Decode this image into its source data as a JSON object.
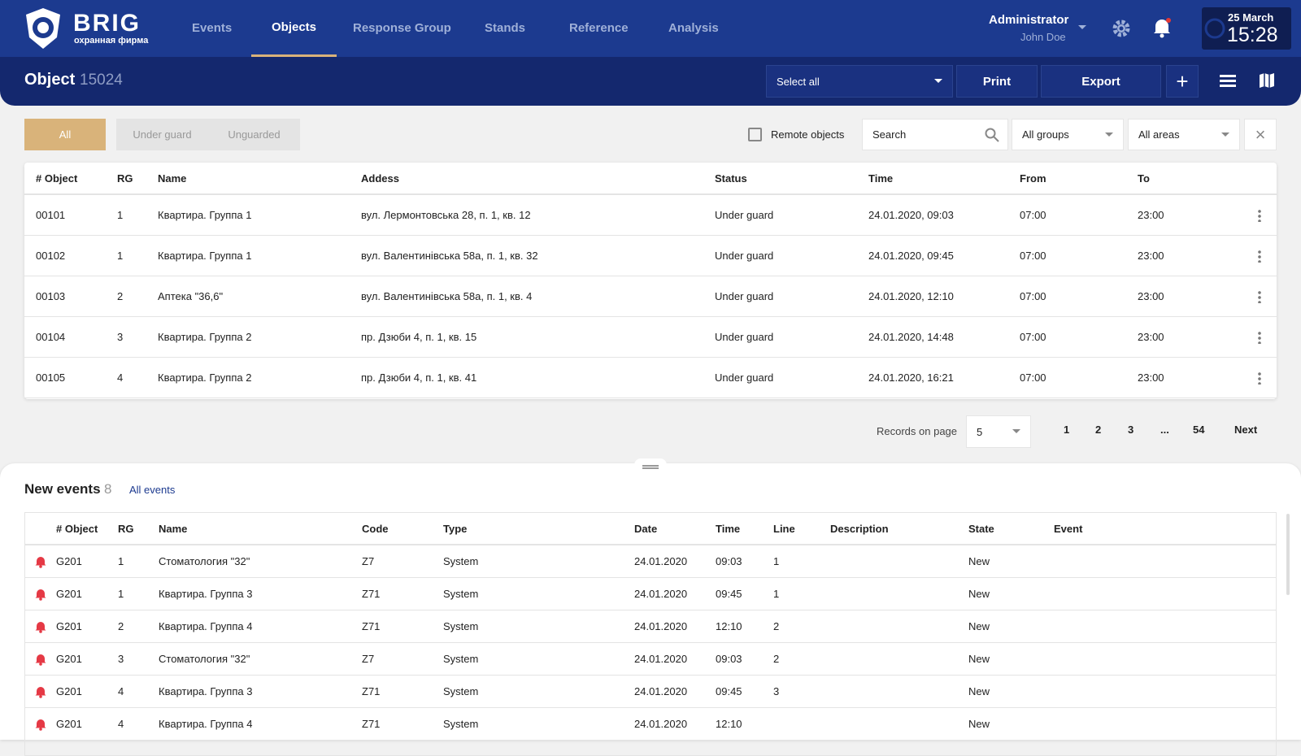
{
  "header": {
    "brand": "BRIG",
    "brand_sub": "охранная фирма",
    "nav": [
      "Events",
      "Objects",
      "Response Group",
      "Stands",
      "Reference",
      "Analysis"
    ],
    "nav_active": 1,
    "user_role": "Administrator",
    "user_name": "John Doe",
    "date": "25 March",
    "time": "15:28"
  },
  "toolbar": {
    "title": "Object",
    "object_id": "15024",
    "select": "Select all",
    "print": "Print",
    "export": "Export"
  },
  "filters": {
    "tabs": [
      "All",
      "Under guard",
      "Unguarded"
    ],
    "tab_active": 0,
    "remote": "Remote objects",
    "search": "Search",
    "groups": "All groups",
    "areas": "All areas"
  },
  "objects": {
    "columns": [
      "# Object",
      "RG",
      "Name",
      "Addess",
      "Status",
      "Time",
      "From",
      "To"
    ],
    "rows": [
      [
        "00101",
        "1",
        "Квартира. Группа 1",
        "вул. Лермонтовська 28, п. 1, кв. 12",
        "Under guard",
        "24.01.2020, 09:03",
        "07:00",
        "23:00"
      ],
      [
        "00102",
        "1",
        "Квартира. Группа 1",
        "вул. Валентинівська 58а, п. 1, кв. 32",
        "Under guard",
        "24.01.2020, 09:45",
        "07:00",
        "23:00"
      ],
      [
        "00103",
        "2",
        "Аптека \"36,6\"",
        "вул. Валентинівська 58а, п. 1, кв. 4",
        "Under guard",
        "24.01.2020, 12:10",
        "07:00",
        "23:00"
      ],
      [
        "00104",
        "3",
        "Квартира. Группа 2",
        "пр. Дзюби 4, п. 1, кв. 15",
        "Under guard",
        "24.01.2020, 14:48",
        "07:00",
        "23:00"
      ],
      [
        "00105",
        "4",
        "Квартира. Группа 2",
        "пр. Дзюби 4, п. 1, кв. 41",
        "Under guard",
        "24.01.2020, 16:21",
        "07:00",
        "23:00"
      ]
    ]
  },
  "pagination": {
    "label": "Records on page",
    "per_page": "5",
    "pages": [
      "1",
      "2",
      "3",
      "...",
      "54"
    ],
    "next": "Next"
  },
  "events": {
    "title": "New events",
    "count": "8",
    "link": "All events",
    "columns": [
      "# Object",
      "RG",
      "Name",
      "Code",
      "Type",
      "Date",
      "Time",
      "Line",
      "Description",
      "State",
      "Event"
    ],
    "rows": [
      [
        "G201",
        "1",
        "Стоматология \"32\"",
        "Z7",
        "System",
        "24.01.2020",
        "09:03",
        "1",
        "",
        "New",
        ""
      ],
      [
        "G201",
        "1",
        "Квартира. Группа 3",
        "Z71",
        "System",
        "24.01.2020",
        "09:45",
        "1",
        "",
        "New",
        ""
      ],
      [
        "G201",
        "2",
        "Квартира. Группа 4",
        "Z71",
        "System",
        "24.01.2020",
        "12:10",
        "2",
        "",
        "New",
        ""
      ],
      [
        "G201",
        "3",
        "Стоматология \"32\"",
        "Z7",
        "System",
        "24.01.2020",
        "09:03",
        "2",
        "",
        "New",
        ""
      ],
      [
        "G201",
        "4",
        "Квартира. Группа 3",
        "Z71",
        "System",
        "24.01.2020",
        "09:45",
        "3",
        "",
        "New",
        ""
      ],
      [
        "G201",
        "4",
        "Квартира. Группа 4",
        "Z71",
        "System",
        "24.01.2020",
        "12:10",
        "",
        "",
        "New",
        ""
      ]
    ]
  }
}
